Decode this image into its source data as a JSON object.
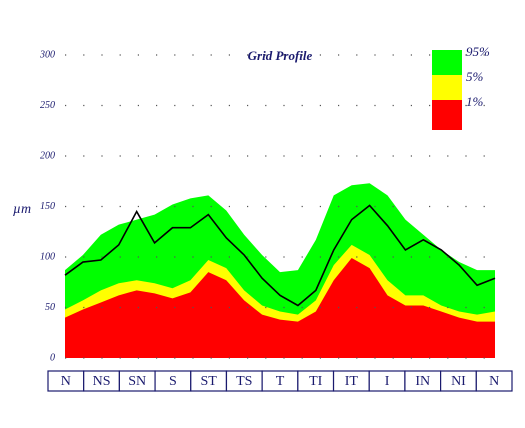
{
  "chart_data": {
    "type": "area",
    "title": "Grid Profile",
    "y_label": "µm",
    "categories": [
      "N",
      "NS",
      "SN",
      "S",
      "ST",
      "TS",
      "T",
      "TI",
      "IT",
      "I",
      "IN",
      "NI",
      "N"
    ],
    "x": [
      0,
      0.5,
      1,
      1.5,
      2,
      2.5,
      3,
      3.5,
      4,
      4.5,
      5,
      5.5,
      6,
      6.5,
      7,
      7.5,
      8,
      8.5,
      9,
      9.5,
      10,
      10.5,
      11,
      11.5,
      12
    ],
    "xlim": [
      0,
      12
    ],
    "ylim": [
      0,
      300
    ],
    "yticks": [
      0,
      50,
      100,
      150,
      200,
      250,
      300
    ],
    "grid": true,
    "legend": "top-right",
    "series": [
      {
        "name": "95%",
        "color": "#00ff00",
        "kind": "area",
        "values": [
          87,
          102,
          122,
          132,
          137,
          142,
          152,
          158,
          161,
          146,
          122,
          102,
          85,
          87,
          117,
          161,
          171,
          173,
          161,
          137,
          122,
          107,
          95,
          87,
          87
        ]
      },
      {
        "name": "5%",
        "color": "#ffff00",
        "kind": "area",
        "values": [
          48,
          57,
          67,
          74,
          77,
          74,
          69,
          77,
          97,
          89,
          67,
          52,
          46,
          43,
          57,
          92,
          112,
          102,
          77,
          62,
          62,
          52,
          46,
          43,
          46
        ]
      },
      {
        "name": "1%",
        "color": "#ff0000",
        "kind": "area",
        "values": [
          40,
          48,
          55,
          62,
          67,
          64,
          59,
          65,
          85,
          77,
          57,
          43,
          38,
          36,
          46,
          77,
          99,
          89,
          62,
          52,
          52,
          46,
          40,
          36,
          36
        ]
      },
      {
        "color": "#000000",
        "kind": "line",
        "values": [
          82,
          95,
          97,
          112,
          145,
          114,
          129,
          129,
          142,
          119,
          102,
          79,
          62,
          52,
          67,
          107,
          137,
          151,
          131,
          107,
          117,
          107,
          92,
          72,
          79
        ]
      }
    ]
  }
}
